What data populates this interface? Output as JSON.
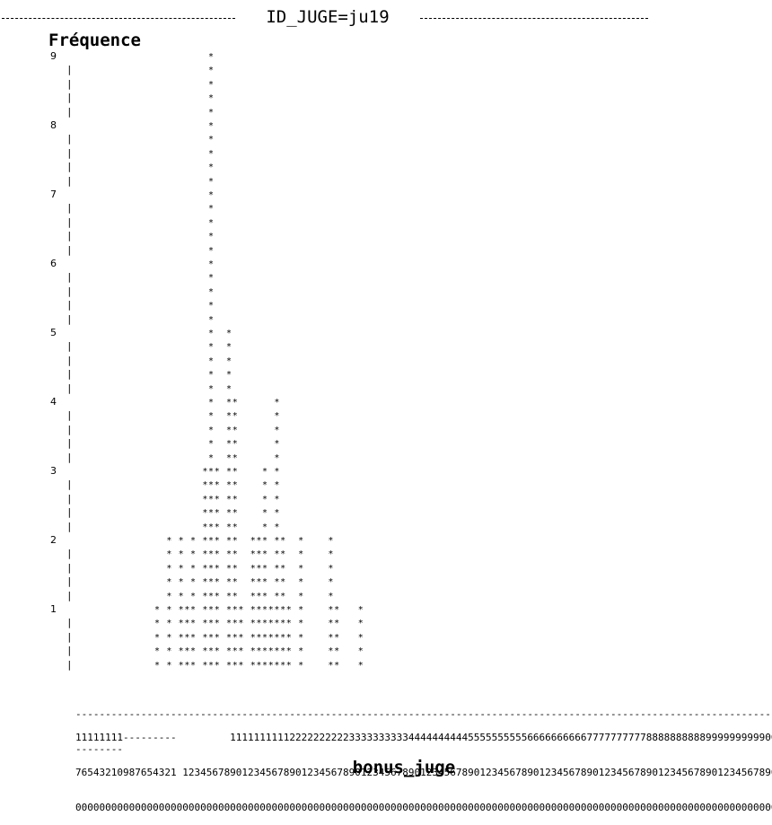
{
  "header": {
    "title": "ID_JUGE=ju19"
  },
  "chart_data": {
    "type": "bar",
    "title": "ID_JUGE=ju19",
    "xlabel": "bonus_juge",
    "ylabel": "Fréquence",
    "y_ticks": [
      "9",
      "8",
      "7",
      "6",
      "5",
      "4",
      "3",
      "2",
      "1"
    ],
    "ylim": [
      0,
      9
    ],
    "x_start": -17,
    "values": [
      1,
      0,
      2,
      0,
      2,
      1,
      2,
      0,
      3,
      9,
      3,
      0,
      5,
      4,
      1,
      0,
      2,
      2,
      3,
      1,
      4,
      2,
      1,
      0,
      2,
      0,
      0,
      0,
      0,
      2,
      1,
      0,
      0,
      0,
      1
    ],
    "axis_line": "------------------------------------------------------------------------------------------------------------------------",
    "axis_line2": "--------",
    "x_tick_rows": [
      "11111111---------         1111111111222222222233333333334444444444555555555566666666667777777777888888888899999999990000000000",
      "76543210987654321 12345678901234567890123456789012345678901234567890123456789012345678901234567890123456789012345678901",
      "00000000000000000000000000000000000000000000000000000000000000000000000000000000000000000000000000000000000000000000000000"
    ]
  }
}
